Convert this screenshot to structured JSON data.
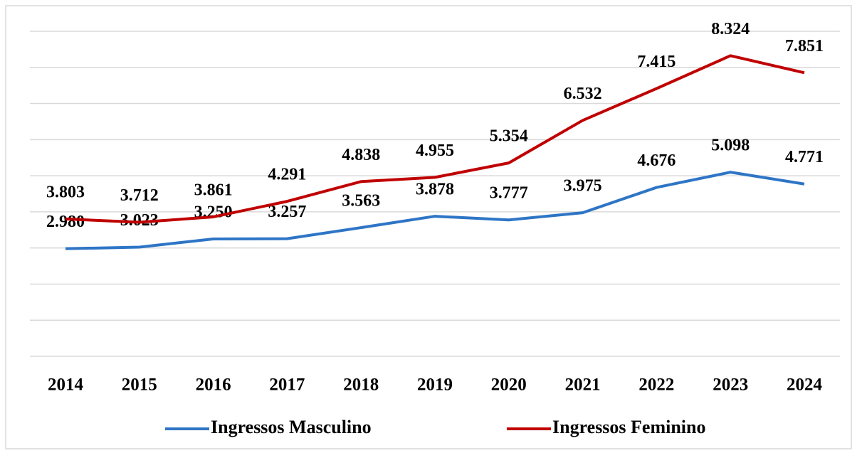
{
  "chart_data": {
    "type": "line",
    "categories": [
      "2014",
      "2015",
      "2016",
      "2017",
      "2018",
      "2019",
      "2020",
      "2021",
      "2022",
      "2023",
      "2024"
    ],
    "series": [
      {
        "name": "Ingressos Masculino",
        "color": "#2e75c6",
        "values": [
          2980,
          3023,
          3250,
          3257,
          3563,
          3878,
          3777,
          3975,
          4676,
          5098,
          4771
        ],
        "value_labels": [
          "2.980",
          "3.023",
          "3.250",
          "3.257",
          "3.563",
          "3.878",
          "3.777",
          "3.975",
          "4.676",
          "5.098",
          "4.771"
        ]
      },
      {
        "name": "Ingressos Feminino",
        "color": "#c00000",
        "values": [
          3803,
          3712,
          3861,
          4291,
          4838,
          4955,
          5354,
          6532,
          7415,
          8324,
          7851
        ],
        "value_labels": [
          "3.803",
          "3.712",
          "3.861",
          "4.291",
          "4.838",
          "4.955",
          "5.354",
          "6.532",
          "7.415",
          "8.324",
          "7.851"
        ]
      }
    ],
    "ylim": [
      0,
      9000
    ],
    "yticks": [
      0,
      1000,
      2000,
      3000,
      4000,
      5000,
      6000,
      7000,
      8000,
      9000
    ],
    "grid": true,
    "legend": "bottom"
  }
}
